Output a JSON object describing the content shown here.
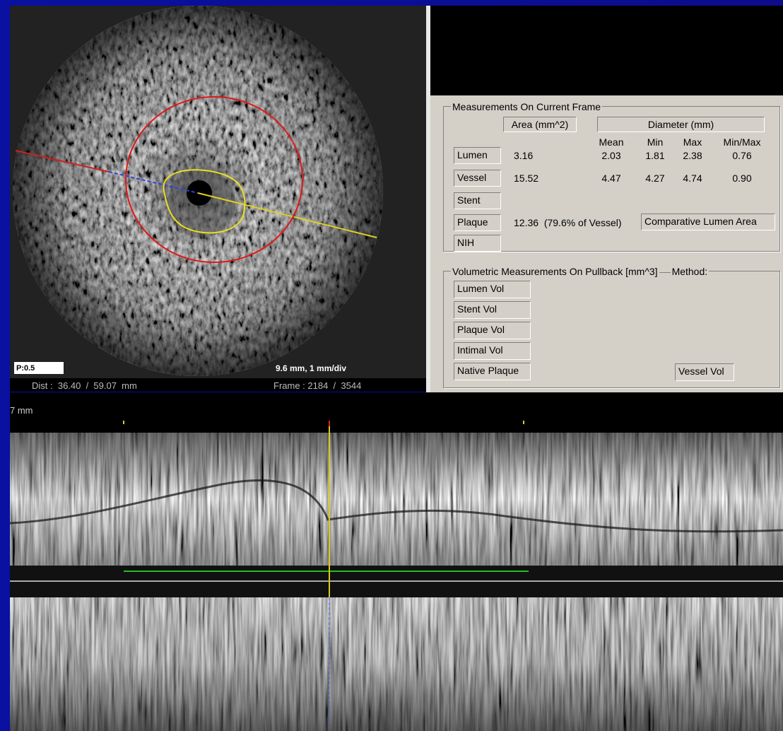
{
  "image_view": {
    "scale_box": "P:0.5",
    "scale": "9.6 mm, 1 mm/div",
    "dist": "Dist :  36.40  /  59.07  mm",
    "frame": "Frame : 2184  /  3544"
  },
  "measurements": {
    "title": "Measurements On Current Frame",
    "area_header": "Area (mm^2)",
    "diameter_header": "Diameter (mm)",
    "columns": [
      "Mean",
      "Min",
      "Max",
      "Min/Max"
    ],
    "rows": [
      {
        "label": "Lumen",
        "area": "3.16",
        "values": [
          "2.03",
          "1.81",
          "2.38",
          "0.76"
        ]
      },
      {
        "label": "Vessel",
        "area": "15.52",
        "values": [
          "4.47",
          "4.27",
          "4.74",
          "0.90"
        ]
      },
      {
        "label": "Stent"
      },
      {
        "label": "Plaque",
        "area": "12.36  (79.6% of Vessel)"
      },
      {
        "label": "NIH"
      }
    ],
    "button": "Comparative Lumen Area"
  },
  "volumetric": {
    "title": "Volumetric Measurements On Pullback [mm^3]",
    "method": "Method:",
    "buttons": [
      "Lumen Vol",
      "Stent Vol",
      "Plaque Vol",
      "Intimal Vol",
      "Native Plaque",
      "Vessel Vol"
    ]
  },
  "long_view": {
    "scale": "7 mm"
  }
}
